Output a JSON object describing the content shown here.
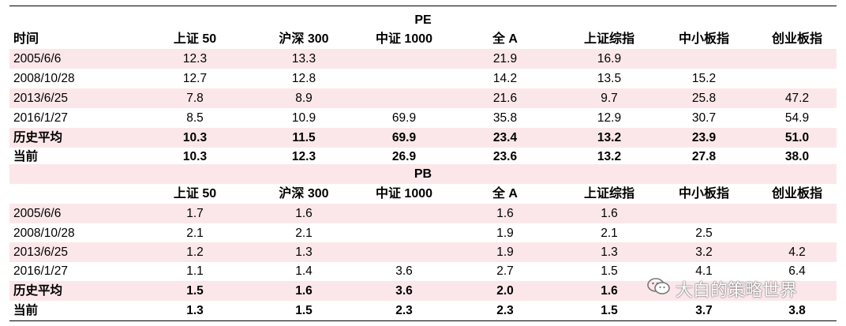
{
  "pe": {
    "title": "PE",
    "headers": [
      "时间",
      "上证 50",
      "沪深 300",
      "中证 1000",
      "全 A",
      "上证综指",
      "中小板指",
      "创业板指"
    ],
    "rows": [
      [
        "2005/6/6",
        "12.3",
        "13.3",
        "",
        "21.9",
        "16.9",
        "",
        ""
      ],
      [
        "2008/10/28",
        "12.7",
        "12.8",
        "",
        "14.2",
        "13.5",
        "15.2",
        ""
      ],
      [
        "2013/6/25",
        "7.8",
        "8.9",
        "",
        "21.6",
        "9.7",
        "25.8",
        "47.2"
      ],
      [
        "2016/1/27",
        "8.5",
        "10.9",
        "69.9",
        "35.8",
        "12.9",
        "30.7",
        "54.9"
      ],
      [
        "历史平均",
        "10.3",
        "11.5",
        "69.9",
        "23.4",
        "13.2",
        "23.9",
        "51.0"
      ],
      [
        "当前",
        "10.3",
        "12.3",
        "26.9",
        "23.6",
        "13.2",
        "27.8",
        "38.0"
      ]
    ]
  },
  "pb": {
    "title": "PB",
    "headers": [
      "",
      "上证 50",
      "沪深 300",
      "中证 1000",
      "全 A",
      "上证综指",
      "中小板指",
      "创业板指"
    ],
    "rows": [
      [
        "2005/6/6",
        "1.7",
        "1.6",
        "",
        "1.6",
        "1.6",
        "",
        ""
      ],
      [
        "2008/10/28",
        "2.1",
        "2.1",
        "",
        "1.9",
        "2.1",
        "2.5",
        ""
      ],
      [
        "2013/6/25",
        "1.2",
        "1.3",
        "",
        "1.9",
        "1.3",
        "3.2",
        "4.2"
      ],
      [
        "2016/1/27",
        "1.1",
        "1.4",
        "3.6",
        "2.7",
        "1.5",
        "4.1",
        "6.4"
      ],
      [
        "历史平均",
        "1.5",
        "1.6",
        "3.6",
        "2.0",
        "1.6",
        "",
        ""
      ],
      [
        "当前",
        "1.3",
        "1.5",
        "2.3",
        "2.3",
        "1.5",
        "3.7",
        "3.8"
      ]
    ]
  },
  "watermark": {
    "icon": "wechat-icon",
    "text": "大白的策略世界"
  }
}
